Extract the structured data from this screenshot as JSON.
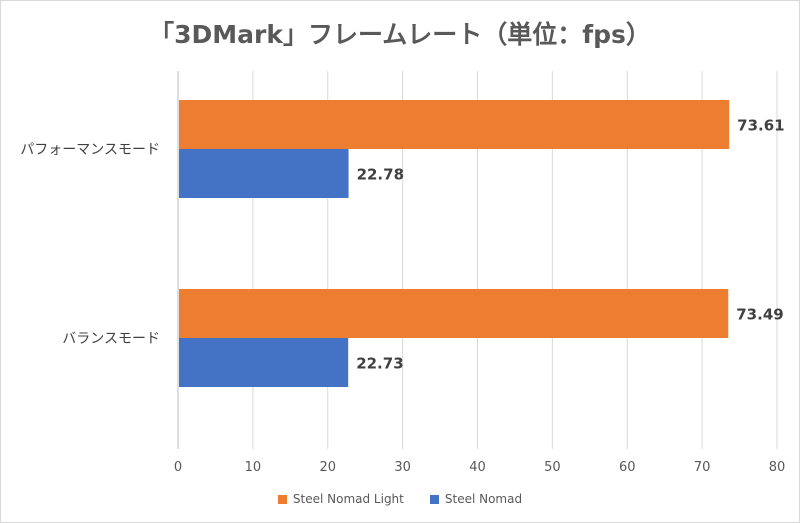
{
  "chart_data": {
    "type": "bar",
    "orientation": "horizontal",
    "title": "「3DMark」フレームレート（単位：fps）",
    "categories": [
      "パフォーマンスモード",
      "バランスモード"
    ],
    "series": [
      {
        "name": "Steel Nomad Light",
        "color": "#ED7D31",
        "values": [
          73.61,
          73.49
        ]
      },
      {
        "name": "Steel Nomad",
        "color": "#4472C4",
        "values": [
          22.78,
          22.73
        ]
      }
    ],
    "xlim": [
      0,
      80
    ],
    "xticks": [
      "0",
      "10",
      "20",
      "30",
      "40",
      "50",
      "60",
      "70",
      "80"
    ],
    "data_labels": [
      [
        "73.61",
        "73.49"
      ],
      [
        "22.78",
        "22.73"
      ]
    ],
    "grid": true,
    "legend_position": "bottom"
  }
}
